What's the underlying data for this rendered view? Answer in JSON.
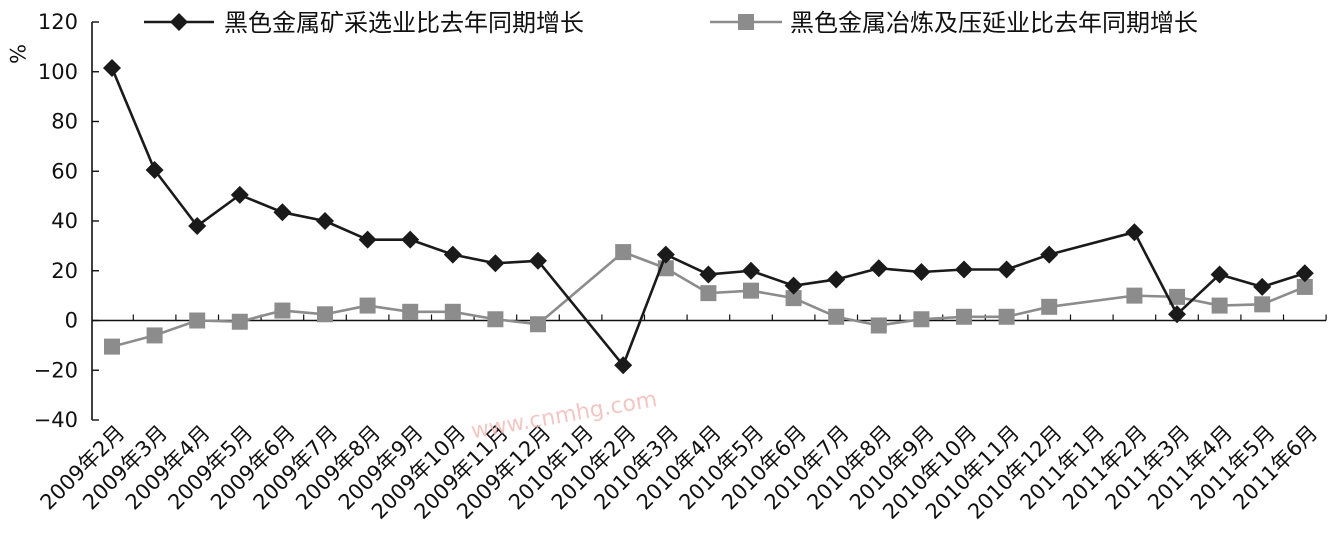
{
  "chart_data": {
    "type": "line",
    "title": "",
    "xlabel": "",
    "ylabel": "%",
    "ylim": [
      -40,
      120
    ],
    "yticks": [
      -40,
      -20,
      0,
      20,
      40,
      60,
      80,
      100,
      120
    ],
    "ytick_labels": [
      "−40",
      "−20",
      "0",
      "20",
      "40",
      "60",
      "80",
      "100",
      "120"
    ],
    "grid": false,
    "legend_position": "top",
    "categories": [
      "2009年2月",
      "2009年3月",
      "2009年4月",
      "2009年5月",
      "2009年6月",
      "2009年7月",
      "2009年8月",
      "2009年9月",
      "2009年10月",
      "2009年11月",
      "2009年12月",
      "2010年1月",
      "2010年2月",
      "2010年3月",
      "2010年4月",
      "2010年5月",
      "2010年6月",
      "2010年7月",
      "2010年8月",
      "2010年9月",
      "2010年10月",
      "2010年11月",
      "2010年12月",
      "2011年1月",
      "2011年2月",
      "2011年3月",
      "2011年4月",
      "2011年5月",
      "2011年6月"
    ],
    "series": [
      {
        "name": "黑色金属矿采选业比去年同期增长",
        "color": "#1a1a1a",
        "marker": "diamond",
        "values": [
          101.5,
          60.5,
          38.0,
          50.5,
          43.5,
          40.0,
          32.5,
          32.5,
          26.5,
          23.0,
          24.0,
          null,
          -18.0,
          26.5,
          18.5,
          20.0,
          14.0,
          16.5,
          21.0,
          19.5,
          20.5,
          20.5,
          26.5,
          null,
          35.5,
          2.5,
          18.5,
          13.5,
          19.0
        ]
      },
      {
        "name": "黑色金属冶炼及压延业比去年同期增长",
        "color": "#8c8c8c",
        "marker": "square",
        "values": [
          -10.5,
          -6.0,
          0.0,
          -0.5,
          4.0,
          2.5,
          6.0,
          3.5,
          3.5,
          0.5,
          -1.5,
          null,
          27.5,
          21.0,
          11.0,
          12.0,
          9.0,
          1.5,
          -2.0,
          0.5,
          1.5,
          1.5,
          5.5,
          null,
          10.0,
          9.5,
          6.0,
          6.5,
          13.5
        ]
      }
    ]
  },
  "watermark": "www.cnmhg.com"
}
